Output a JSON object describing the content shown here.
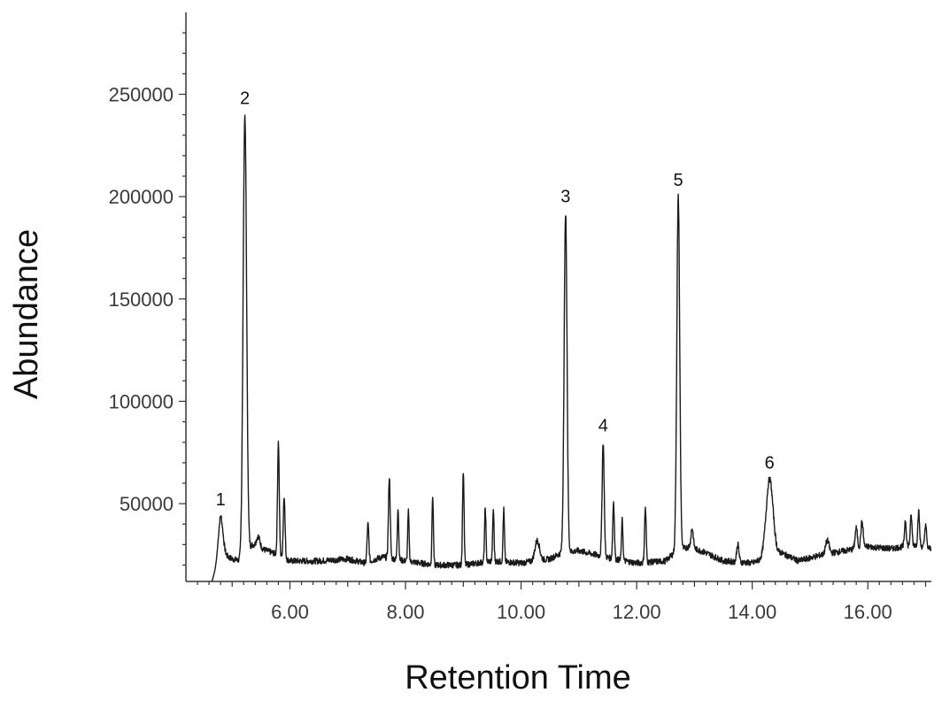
{
  "chart_data": {
    "type": "line",
    "title": "",
    "xlabel": "Retention Time",
    "ylabel": "Abundance",
    "xlim": [
      4.2,
      17.1
    ],
    "ylim": [
      12000,
      290000
    ],
    "xticks": [
      6,
      8,
      10,
      12,
      14,
      16
    ],
    "xtick_labels": [
      "6.00",
      "8.00",
      "10.00",
      "12.00",
      "14.00",
      "16.00"
    ],
    "yticks": [
      50000,
      100000,
      150000,
      200000,
      250000
    ],
    "ytick_labels": [
      "50000",
      "100000",
      "150000",
      "200000",
      "250000"
    ],
    "grid": false,
    "legend": "none",
    "colors": {
      "trace": "#1a1a1a",
      "axis": "#333333"
    },
    "baseline": [
      [
        4.65,
        12000
      ],
      [
        4.8,
        26000
      ],
      [
        5.0,
        23000
      ],
      [
        5.15,
        22000
      ],
      [
        5.35,
        30000
      ],
      [
        5.6,
        27000
      ],
      [
        5.8,
        25000
      ],
      [
        6.0,
        22000
      ],
      [
        6.5,
        22000
      ],
      [
        7.0,
        23000
      ],
      [
        7.3,
        21000
      ],
      [
        7.6,
        24000
      ],
      [
        8.0,
        22000
      ],
      [
        8.5,
        20000
      ],
      [
        9.0,
        20000
      ],
      [
        9.5,
        22000
      ],
      [
        10.0,
        21000
      ],
      [
        10.5,
        23000
      ],
      [
        10.7,
        26000
      ],
      [
        11.0,
        27000
      ],
      [
        11.3,
        25000
      ],
      [
        11.6,
        23000
      ],
      [
        12.0,
        21000
      ],
      [
        12.5,
        22000
      ],
      [
        12.65,
        26000
      ],
      [
        12.9,
        29000
      ],
      [
        13.2,
        26000
      ],
      [
        13.5,
        22000
      ],
      [
        14.0,
        21000
      ],
      [
        14.2,
        23000
      ],
      [
        14.5,
        26000
      ],
      [
        14.8,
        22000
      ],
      [
        15.2,
        25000
      ],
      [
        15.6,
        27000
      ],
      [
        16.0,
        29000
      ],
      [
        16.4,
        28000
      ],
      [
        16.8,
        30000
      ],
      [
        17.1,
        28000
      ]
    ],
    "peaks": [
      {
        "x": 4.8,
        "y": 44000,
        "w": 0.04
      },
      {
        "x": 5.22,
        "y": 240000,
        "w": 0.03
      },
      {
        "x": 5.45,
        "y": 34000,
        "w": 0.03
      },
      {
        "x": 5.8,
        "y": 80000,
        "w": 0.015
      },
      {
        "x": 5.9,
        "y": 54000,
        "w": 0.015
      },
      {
        "x": 7.35,
        "y": 40000,
        "w": 0.015
      },
      {
        "x": 7.72,
        "y": 63000,
        "w": 0.015
      },
      {
        "x": 7.87,
        "y": 48000,
        "w": 0.012
      },
      {
        "x": 8.05,
        "y": 46000,
        "w": 0.012
      },
      {
        "x": 8.47,
        "y": 54000,
        "w": 0.012
      },
      {
        "x": 9.0,
        "y": 66000,
        "w": 0.013
      },
      {
        "x": 9.38,
        "y": 48000,
        "w": 0.012
      },
      {
        "x": 9.52,
        "y": 47000,
        "w": 0.012
      },
      {
        "x": 9.7,
        "y": 47000,
        "w": 0.012
      },
      {
        "x": 10.28,
        "y": 32000,
        "w": 0.04
      },
      {
        "x": 10.77,
        "y": 192000,
        "w": 0.025
      },
      {
        "x": 11.42,
        "y": 80000,
        "w": 0.018
      },
      {
        "x": 11.6,
        "y": 51000,
        "w": 0.014
      },
      {
        "x": 11.75,
        "y": 42000,
        "w": 0.012
      },
      {
        "x": 12.15,
        "y": 48000,
        "w": 0.014
      },
      {
        "x": 12.72,
        "y": 200000,
        "w": 0.025
      },
      {
        "x": 12.96,
        "y": 38000,
        "w": 0.02
      },
      {
        "x": 13.75,
        "y": 30000,
        "w": 0.02
      },
      {
        "x": 14.3,
        "y": 62000,
        "w": 0.06
      },
      {
        "x": 15.3,
        "y": 32000,
        "w": 0.03
      },
      {
        "x": 15.8,
        "y": 38000,
        "w": 0.02
      },
      {
        "x": 15.9,
        "y": 41000,
        "w": 0.02
      },
      {
        "x": 16.65,
        "y": 42000,
        "w": 0.015
      },
      {
        "x": 16.75,
        "y": 44000,
        "w": 0.015
      },
      {
        "x": 16.88,
        "y": 46000,
        "w": 0.015
      },
      {
        "x": 17.0,
        "y": 40000,
        "w": 0.015
      }
    ],
    "peak_labels": [
      {
        "text": "1",
        "x": 4.8,
        "y": 44000
      },
      {
        "text": "2",
        "x": 5.22,
        "y": 240000
      },
      {
        "text": "3",
        "x": 10.77,
        "y": 192000
      },
      {
        "text": "4",
        "x": 11.42,
        "y": 80000
      },
      {
        "text": "5",
        "x": 12.72,
        "y": 200000
      },
      {
        "text": "6",
        "x": 14.3,
        "y": 62000
      }
    ]
  }
}
